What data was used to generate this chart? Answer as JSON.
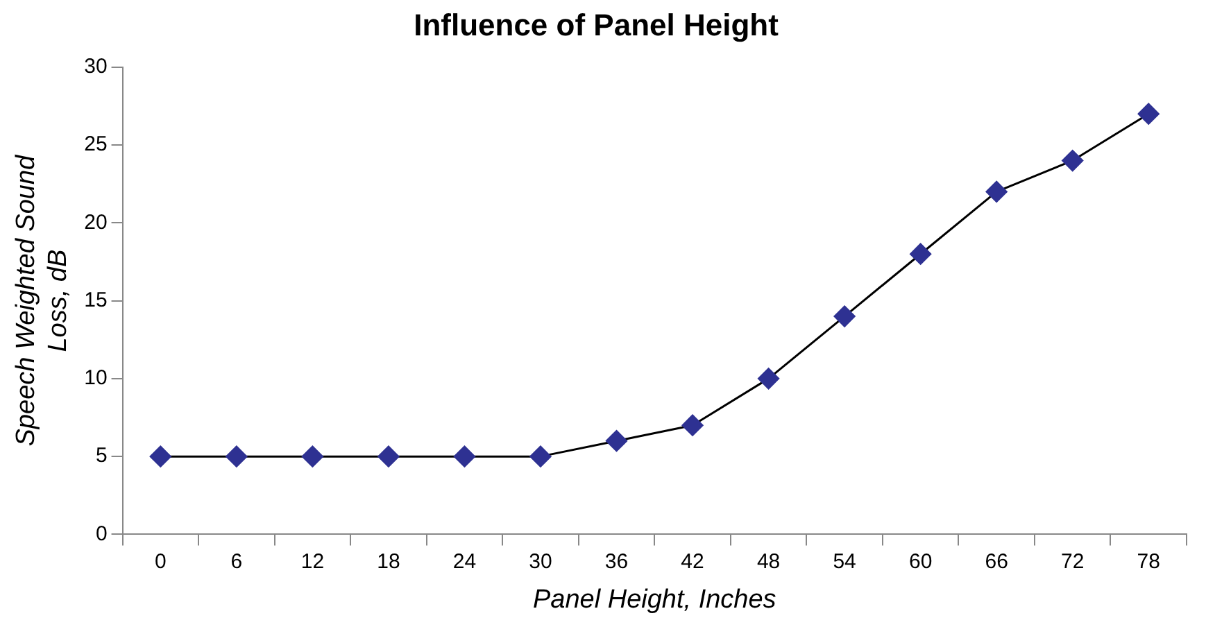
{
  "chart_data": {
    "type": "line",
    "title": "Influence of Panel Height",
    "xlabel": "Panel Height, Inches",
    "ylabel": "Speech Weighted Sound Loss, dB",
    "categories": [
      "0",
      "6",
      "12",
      "18",
      "24",
      "30",
      "36",
      "42",
      "48",
      "54",
      "60",
      "66",
      "72",
      "78"
    ],
    "series": [
      {
        "color": "#2e3192",
        "values": [
          5,
          5,
          5,
          5,
          5,
          5,
          6,
          7,
          10,
          14,
          18,
          22,
          24,
          27
        ]
      }
    ],
    "ylim": [
      0,
      30
    ],
    "yticks": [
      0,
      5,
      10,
      15,
      20,
      25,
      30
    ],
    "marker": "diamond",
    "line_style": "solid"
  }
}
